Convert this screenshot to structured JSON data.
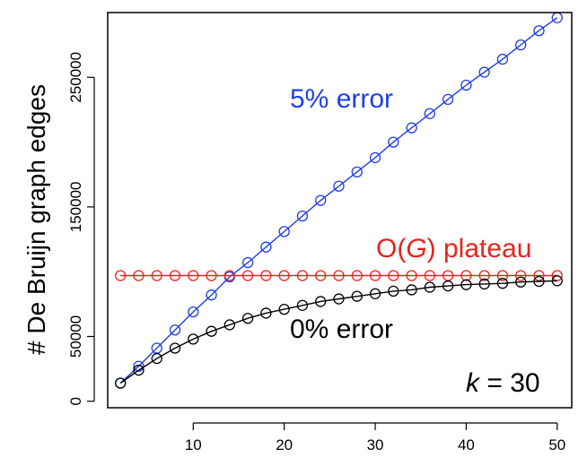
{
  "chart_data": {
    "type": "line",
    "title": "",
    "xlabel": "",
    "ylabel": "# De Bruijn graph edges",
    "xlim": [
      0.6,
      51.6
    ],
    "ylim": [
      -5000,
      300000
    ],
    "x_ticks": [
      10,
      20,
      30,
      40,
      50
    ],
    "y_ticks": [
      0,
      50000,
      150000,
      250000
    ],
    "x": [
      2,
      4,
      6,
      8,
      10,
      12,
      14,
      16,
      18,
      20,
      22,
      24,
      26,
      28,
      30,
      32,
      34,
      36,
      38,
      40,
      42,
      44,
      46,
      48,
      50
    ],
    "series": [
      {
        "name": "5% error",
        "color": "#1f3fe6",
        "values": [
          14000,
          27000,
          41000,
          55000,
          69000,
          82000,
          96000,
          107000,
          119000,
          131000,
          143000,
          155000,
          166000,
          177000,
          188000,
          200000,
          211000,
          222000,
          233000,
          244000,
          254000,
          264000,
          275000,
          286000,
          296000
        ]
      },
      {
        "name": "O(G) plateau",
        "color": "#e8231b",
        "values": [
          97000,
          97000,
          97000,
          97000,
          97000,
          97000,
          97000,
          97000,
          97000,
          97000,
          97000,
          97000,
          97000,
          97000,
          97000,
          97000,
          97000,
          97000,
          97000,
          97000,
          97000,
          97000,
          97000,
          97000,
          97000
        ]
      },
      {
        "name": "0% error",
        "color": "#000000",
        "values": [
          14000,
          24000,
          33000,
          41000,
          48000,
          54000,
          59000,
          64000,
          68000,
          71000,
          74000,
          77000,
          79000,
          81000,
          83000,
          85000,
          86000,
          88000,
          89000,
          90000,
          90500,
          91000,
          92000,
          92500,
          93000
        ]
      }
    ],
    "annotations": {
      "error5": "5% error",
      "plateau_prefix": "O(",
      "plateau_var": "G",
      "plateau_suffix": ") plateau",
      "error0": "0% error",
      "k_var": "k",
      "k_eq": " = 30"
    }
  }
}
